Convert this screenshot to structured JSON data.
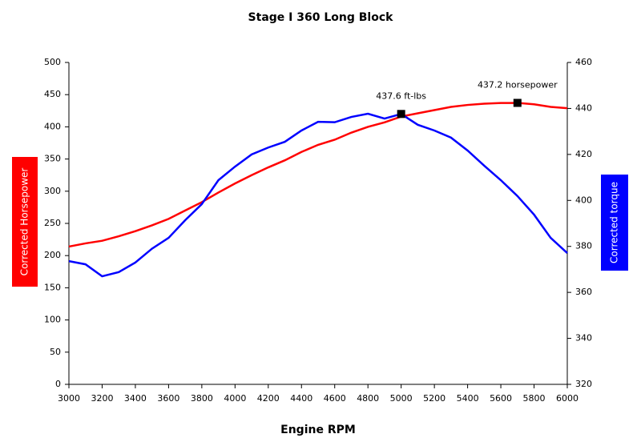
{
  "chart_data": {
    "type": "line",
    "title": "Stage I 360 Long Block",
    "x_label": "Engine RPM",
    "y_label": "Corrected Horsepower",
    "y2_label": "Corrected torque",
    "x": [
      3000,
      3100,
      3200,
      3300,
      3400,
      3500,
      3600,
      3700,
      3800,
      3900,
      4000,
      4100,
      4200,
      4300,
      4400,
      4500,
      4600,
      4700,
      4800,
      4900,
      5000,
      5100,
      5200,
      5300,
      5400,
      5500,
      5600,
      5700,
      5800,
      5900,
      6000
    ],
    "series": [
      {
        "name": "Corrected Horsepower",
        "color": "#ff0000",
        "axis": "y",
        "values": [
          214,
          219,
          223,
          230,
          238,
          247,
          257,
          270,
          283,
          298,
          312,
          325,
          337,
          348,
          361,
          372,
          380,
          391,
          400,
          407,
          416,
          421,
          426,
          431,
          434,
          436,
          437,
          437.2,
          435,
          431,
          429
        ]
      },
      {
        "name": "Corrected torque",
        "color": "#0000ff",
        "axis": "y2",
        "values": [
          373.6,
          372.2,
          367,
          368.8,
          373,
          379,
          383.7,
          391.4,
          398.4,
          408.8,
          414.7,
          420,
          423,
          425.5,
          430.4,
          434.2,
          434,
          436.3,
          437.7,
          435.6,
          437.6,
          432.9,
          430.4,
          427.3,
          421.7,
          415.1,
          408.8,
          401.9,
          393.8,
          383.7,
          377.1
        ]
      }
    ],
    "annotations": [
      {
        "text": "437.6 ft-lbs",
        "x": 5000,
        "y": 437.6,
        "axis": "y2"
      },
      {
        "text": "437.2 horsepower",
        "x": 5700,
        "y": 437.2,
        "axis": "y"
      }
    ],
    "xlim": [
      3000,
      6000
    ],
    "xticks": [
      3000,
      3200,
      3400,
      3600,
      3800,
      4000,
      4200,
      4400,
      4600,
      4800,
      5000,
      5200,
      5400,
      5600,
      5800,
      6000
    ],
    "ylim": [
      0,
      500
    ],
    "yticks": [
      0,
      50,
      100,
      150,
      200,
      250,
      300,
      350,
      400,
      450,
      500
    ],
    "y2lim": [
      320,
      460
    ],
    "y2ticks": [
      320,
      340,
      360,
      380,
      400,
      420,
      440,
      460
    ],
    "grid": false
  }
}
